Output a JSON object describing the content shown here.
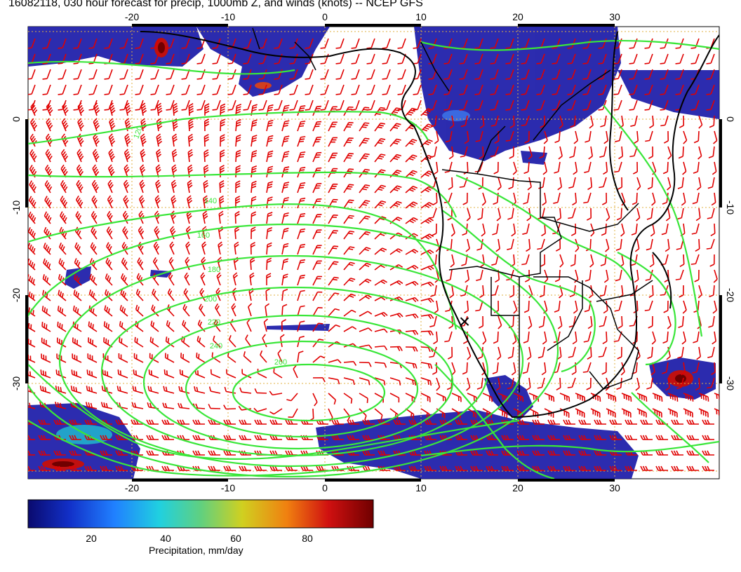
{
  "title": "16082118, 030 hour forecast for precip, 1000mb Z, and winds (knots) -- NCEP GFS",
  "axes": {
    "lon_labels": [
      "-20",
      "-10",
      "0",
      "10",
      "20",
      "30"
    ],
    "lat_labels": [
      "0",
      "-10",
      "-20",
      "-30"
    ]
  },
  "colorbar": {
    "title": "Precipitation, mm/day",
    "ticks": [
      "20",
      "40",
      "60",
      "80"
    ]
  },
  "height_labels": [
    "120",
    "140",
    "160",
    "180",
    "200",
    "220",
    "240",
    "260"
  ],
  "colors": {
    "precip_low": "#1a1aa8",
    "contour": "#39e639",
    "barb": "#e00000",
    "coast": "#000000",
    "grid": "#e0b040"
  },
  "annotations": {
    "center_marker": "×"
  }
}
